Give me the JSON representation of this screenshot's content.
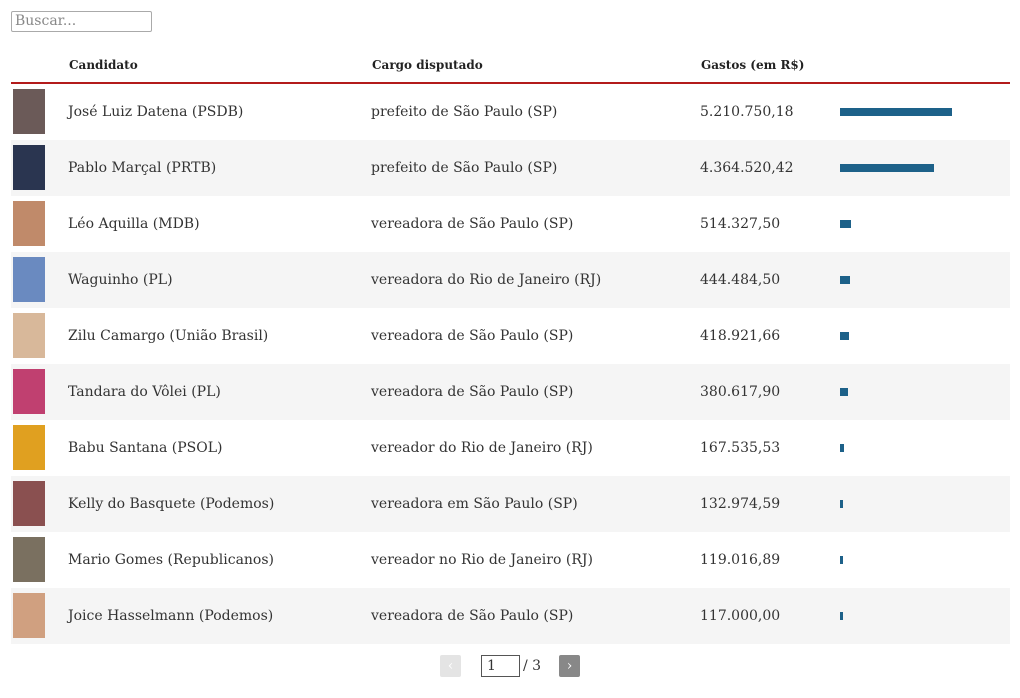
{
  "search_placeholder": "Buscar...",
  "table": {
    "columns": [
      "Candidato",
      "Cargo disputado",
      "Gastos (em R$)"
    ],
    "rows": [
      [
        "José Luiz Datena (PSDB)",
        "prefeito de São Paulo (SP)",
        {
          "value": 5210750.18,
          "label": "5.210.750,18"
        }
      ],
      [
        "Pablo Marçal (PRTB)",
        "prefeito de São Paulo (SP)",
        {
          "value": 4364520.42,
          "label": "4.364.520,42"
        }
      ],
      [
        "Léo Aquilla (MDB)",
        "vereadora de São Paulo (SP)",
        {
          "value": 514327.5,
          "label": "514.327,50"
        }
      ],
      [
        "Waguinho (PL)",
        "vereadora do Rio de Janeiro (RJ)",
        {
          "value": 444484.5,
          "label": "444.484,50"
        }
      ],
      [
        "Zilu Camargo (União Brasil)",
        "vereadora de São Paulo (SP)",
        {
          "value": 418921.66,
          "label": "418.921,66"
        }
      ],
      [
        "Tandara do Vôlei (PL)",
        "vereadora de São Paulo (SP)",
        {
          "value": 380617.9,
          "label": "380.617,90"
        }
      ],
      [
        "Babu Santana (PSOL)",
        "vereador do Rio de Janeiro (RJ)",
        {
          "value": 167535.53,
          "label": "167.535,53"
        }
      ],
      [
        "Kelly do Basquete (Podemos)",
        "vereadora em São Paulo (SP)",
        {
          "value": 132974.59,
          "label": "132.974,59"
        }
      ],
      [
        "Mario Gomes (Republicanos)",
        "vereador no Rio de Janeiro (RJ)",
        {
          "value": 119016.89,
          "label": "119.016,89"
        }
      ],
      [
        "Joice Hasselmann (Podemos)",
        "vereadora de São Paulo (SP)",
        {
          "value": 117000.0,
          "label": "117.000,00"
        }
      ]
    ]
  },
  "pagination": {
    "prev": "‹",
    "page": "1",
    "total": "/ 3",
    "next": "›"
  }
}
